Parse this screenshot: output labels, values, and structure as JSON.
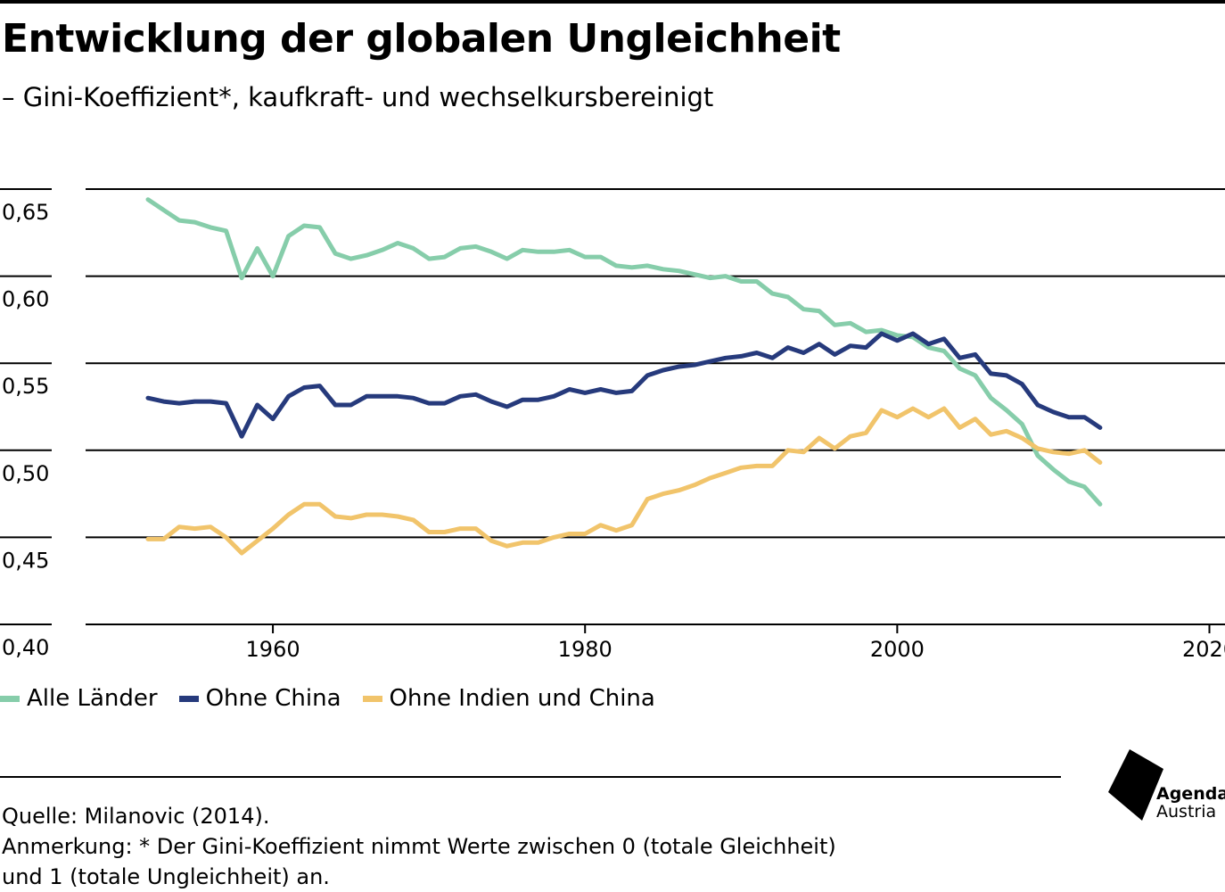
{
  "title": "Entwicklung der globalen Ungleichheit",
  "subtitle": "– Gini-Koeffizient*, kaufkraft- und wechselkursbereinigt",
  "legend": [
    {
      "label": "Alle Länder",
      "color": "#86cdaa"
    },
    {
      "label": "Ohne China",
      "color": "#263a7c"
    },
    {
      "label": "Ohne Indien und China",
      "color": "#f1c46b"
    }
  ],
  "notes": {
    "source": "Quelle: Milanovic (2014).",
    "remark_line1": "Anmerkung: * Der Gini-Koeffizient nimmt Werte zwischen 0 (totale Gleichheit)",
    "remark_line2": "und 1 (totale Ungleichheit) an."
  },
  "logo": {
    "line1": "Agenda",
    "line2": "Austria"
  },
  "chart_data": {
    "type": "line",
    "title": "Entwicklung der globalen Ungleichheit",
    "subtitle": "– Gini-Koeffizient*, kaufkraft- und wechselkursbereinigt",
    "xlabel": "",
    "ylabel": "",
    "xlim": [
      1948,
      2021
    ],
    "ylim": [
      0.4,
      0.65
    ],
    "xticks": [
      1960,
      1980,
      2000,
      2020
    ],
    "yticks": [
      0.4,
      0.45,
      0.5,
      0.55,
      0.6,
      0.65
    ],
    "ytick_labels": [
      "0,40",
      "0,45",
      "0,50",
      "0,55",
      "0,60",
      "0,65"
    ],
    "grid": true,
    "legend_position": "bottom-left",
    "x": [
      1952,
      1953,
      1954,
      1955,
      1956,
      1957,
      1958,
      1959,
      1960,
      1961,
      1962,
      1963,
      1964,
      1965,
      1966,
      1967,
      1968,
      1969,
      1970,
      1971,
      1972,
      1973,
      1974,
      1975,
      1976,
      1977,
      1978,
      1979,
      1980,
      1981,
      1982,
      1983,
      1984,
      1985,
      1986,
      1987,
      1988,
      1989,
      1990,
      1991,
      1992,
      1993,
      1994,
      1995,
      1996,
      1997,
      1998,
      1999,
      2000,
      2001,
      2002,
      2003,
      2004,
      2005,
      2006,
      2007,
      2008,
      2009,
      2010,
      2011,
      2012,
      2013
    ],
    "series": [
      {
        "name": "Alle Länder",
        "color": "#86cdaa",
        "values": [
          0.644,
          0.638,
          0.632,
          0.631,
          0.628,
          0.626,
          0.599,
          0.616,
          0.6,
          0.623,
          0.629,
          0.628,
          0.613,
          0.61,
          0.612,
          0.615,
          0.619,
          0.616,
          0.61,
          0.611,
          0.616,
          0.617,
          0.614,
          0.61,
          0.615,
          0.614,
          0.614,
          0.615,
          0.611,
          0.611,
          0.606,
          0.605,
          0.606,
          0.604,
          0.603,
          0.601,
          0.599,
          0.6,
          0.597,
          0.597,
          0.59,
          0.588,
          0.581,
          0.58,
          0.572,
          0.573,
          0.568,
          0.569,
          0.566,
          0.565,
          0.559,
          0.557,
          0.547,
          0.543,
          0.53,
          0.523,
          0.515,
          0.497,
          0.489,
          0.482,
          0.479,
          0.469
        ]
      },
      {
        "name": "Ohne China",
        "color": "#263a7c",
        "values": [
          0.53,
          0.528,
          0.527,
          0.528,
          0.528,
          0.527,
          0.508,
          0.526,
          0.518,
          0.531,
          0.536,
          0.537,
          0.526,
          0.526,
          0.531,
          0.531,
          0.531,
          0.53,
          0.527,
          0.527,
          0.531,
          0.532,
          0.528,
          0.525,
          0.529,
          0.529,
          0.531,
          0.535,
          0.533,
          0.535,
          0.533,
          0.534,
          0.543,
          0.546,
          0.548,
          0.549,
          0.551,
          0.553,
          0.554,
          0.556,
          0.553,
          0.559,
          0.556,
          0.561,
          0.555,
          0.56,
          0.559,
          0.567,
          0.563,
          0.567,
          0.561,
          0.564,
          0.553,
          0.555,
          0.544,
          0.543,
          0.538,
          0.526,
          0.522,
          0.519,
          0.519,
          0.513
        ]
      },
      {
        "name": "Ohne Indien und China",
        "color": "#f1c46b",
        "values": [
          0.449,
          0.449,
          0.456,
          0.455,
          0.456,
          0.45,
          0.441,
          0.448,
          0.455,
          0.463,
          0.469,
          0.469,
          0.462,
          0.461,
          0.463,
          0.463,
          0.462,
          0.46,
          0.453,
          0.453,
          0.455,
          0.455,
          0.448,
          0.445,
          0.447,
          0.447,
          0.45,
          0.452,
          0.452,
          0.457,
          0.454,
          0.457,
          0.472,
          0.475,
          0.477,
          0.48,
          0.484,
          0.487,
          0.49,
          0.491,
          0.491,
          0.5,
          0.499,
          0.507,
          0.501,
          0.508,
          0.51,
          0.523,
          0.519,
          0.524,
          0.519,
          0.524,
          0.513,
          0.518,
          0.509,
          0.511,
          0.507,
          0.501,
          0.499,
          0.498,
          0.5,
          0.493
        ]
      }
    ]
  }
}
